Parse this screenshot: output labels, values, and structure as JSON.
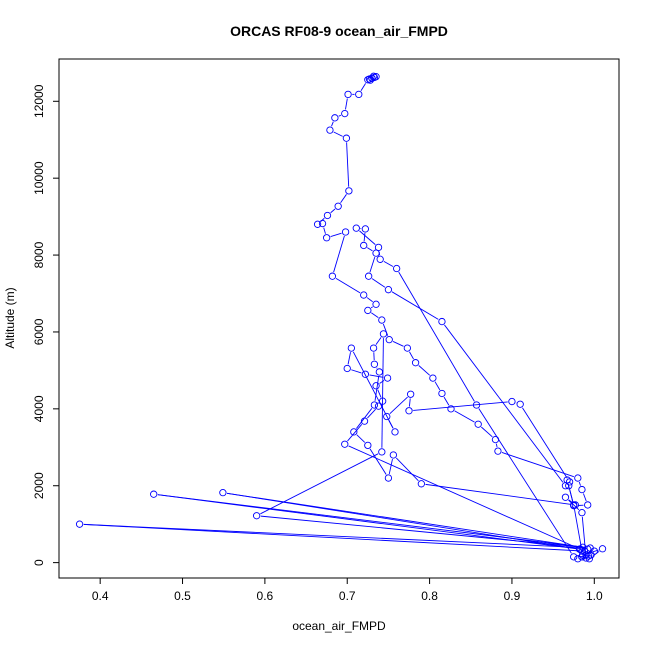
{
  "chart_data": {
    "type": "line",
    "title": "ORCAS RF08-9 ocean_air_FMPD",
    "xlabel": "ocean_air_FMPD",
    "ylabel": "Altitude (m)",
    "xlim": [
      0.35,
      1.03
    ],
    "ylim": [
      -400,
      13100
    ],
    "xticks": [
      0.4,
      0.5,
      0.6,
      0.7,
      0.8,
      0.9,
      1.0
    ],
    "xtick_labels": [
      "0.4",
      "0.5",
      "0.6",
      "0.7",
      "0.8",
      "0.9",
      "1.0"
    ],
    "yticks": [
      0,
      2000,
      4000,
      6000,
      8000,
      10000,
      12000
    ],
    "ytick_labels": [
      "0",
      "2000",
      "4000",
      "6000",
      "8000",
      "10000",
      "12000"
    ],
    "grid": false,
    "marker": "open-circle",
    "color": "#0000ff",
    "series": [
      {
        "x": [
          0.732,
          0.73,
          0.728,
          0.733,
          0.735,
          0.73,
          0.727,
          0.725,
          0.714,
          0.701,
          0.697,
          0.685,
          0.679,
          0.699,
          0.702,
          0.689,
          0.676,
          0.664,
          0.67,
          0.675,
          0.698,
          0.682,
          0.72,
          0.735,
          0.725,
          0.742,
          0.751,
          0.773,
          0.783,
          0.804,
          0.815,
          0.826,
          0.859,
          0.88,
          0.883,
          0.98,
          0.985,
          0.992,
          0.975,
          0.969,
          0.967,
          0.975,
          0.985,
          0.99,
          0.982,
          0.992,
          1.0,
          0.986,
          1.01,
          0.994,
          0.98,
          0.985,
          0.99,
          0.993,
          0.975,
          0.857,
          0.76,
          0.74,
          0.738,
          0.711,
          0.722,
          0.72,
          0.735,
          0.726,
          0.75,
          0.815,
          0.965,
          0.97,
          0.91,
          0.9,
          0.775,
          0.777,
          0.748,
          0.758,
          0.705,
          0.7,
          0.722,
          0.749,
          0.735,
          0.743,
          0.738,
          0.721,
          0.697,
          0.988,
          0.375,
          0.995,
          0.465,
          0.983,
          0.549,
          0.986,
          0.59,
          0.742,
          0.744,
          0.732,
          0.733,
          0.739,
          0.733,
          0.708,
          0.725,
          0.75,
          0.756,
          0.79,
          0.977,
          0.965,
          0.985,
          0.99,
          0.996,
          0.985
        ],
        "y": [
          12650,
          12600,
          12550,
          12620,
          12640,
          12600,
          12580,
          12560,
          12180,
          12180,
          11680,
          11570,
          11250,
          11040,
          9670,
          9270,
          9030,
          8800,
          8820,
          8450,
          8600,
          7450,
          6960,
          6720,
          6560,
          6310,
          5800,
          5580,
          5200,
          4800,
          4400,
          4000,
          3600,
          3200,
          2900,
          2200,
          1900,
          1500,
          1480,
          2000,
          2150,
          1500,
          300,
          200,
          350,
          350,
          300,
          200,
          360,
          100,
          100,
          150,
          200,
          170,
          150,
          4100,
          7650,
          7890,
          8200,
          8700,
          8680,
          8250,
          8050,
          7450,
          7100,
          6270,
          2000,
          2100,
          4120,
          4190,
          3950,
          4380,
          3800,
          3400,
          5580,
          5050,
          4900,
          4800,
          4600,
          4200,
          4070,
          3680,
          3080,
          300,
          1000,
          380,
          1780,
          350,
          1820,
          400,
          1220,
          2880,
          5950,
          5580,
          5160,
          4960,
          4100,
          3400,
          3050,
          2200,
          2800,
          2050,
          1500,
          1700,
          1300,
          120,
          200,
          150
        ]
      }
    ]
  }
}
